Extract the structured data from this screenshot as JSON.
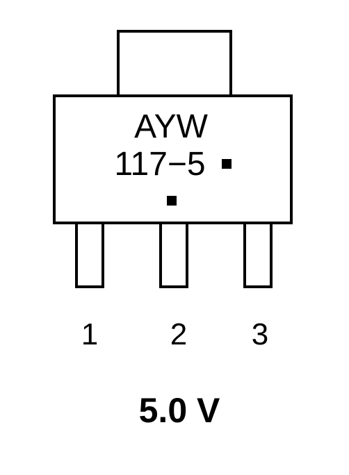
{
  "package": {
    "marking_line1": "AYW",
    "marking_line2": "117−5"
  },
  "pins": [
    {
      "label": "1"
    },
    {
      "label": "2"
    },
    {
      "label": "3"
    }
  ],
  "voltage_label": "5.0 V",
  "colors": {
    "stroke": "#000000",
    "background": "#ffffff"
  }
}
